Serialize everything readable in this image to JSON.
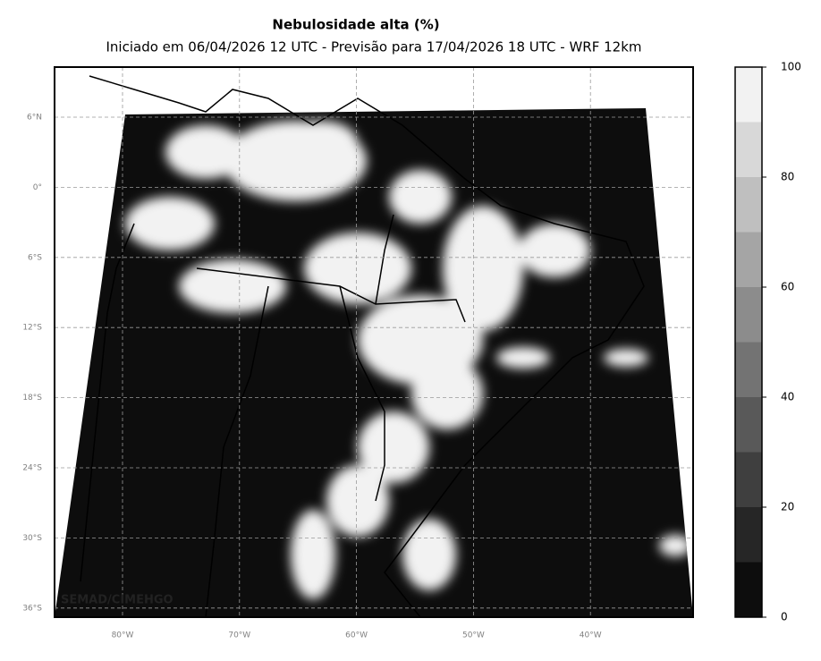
{
  "map": {
    "title": "Nebulosidade alta (%)",
    "subtitle": "Iniciado em 06/04/2026 12 UTC - Previsão para 17/04/2026 18 UTC - WRF 12km",
    "lat_labels": [
      "6°N",
      "0°",
      "6°S",
      "12°S",
      "18°S",
      "24°S",
      "30°S",
      "36°S"
    ],
    "lon_labels": [
      "80°W",
      "70°W",
      "60°W",
      "50°W",
      "40°W"
    ],
    "credit": "SEMAD/CIMEHGO"
  },
  "colorbar": {
    "lim": [
      0,
      100
    ],
    "levels": [
      0,
      10,
      20,
      30,
      40,
      50,
      60,
      70,
      80,
      90,
      100
    ],
    "colors": [
      "#0d0d0d",
      "#262626",
      "#3f3f3f",
      "#595959",
      "#737373",
      "#8c8c8c",
      "#a5a5a5",
      "#bfbfbf",
      "#d8d8d8",
      "#f2f2f2"
    ],
    "ticks": [
      0,
      20,
      40,
      60,
      80,
      100
    ]
  }
}
